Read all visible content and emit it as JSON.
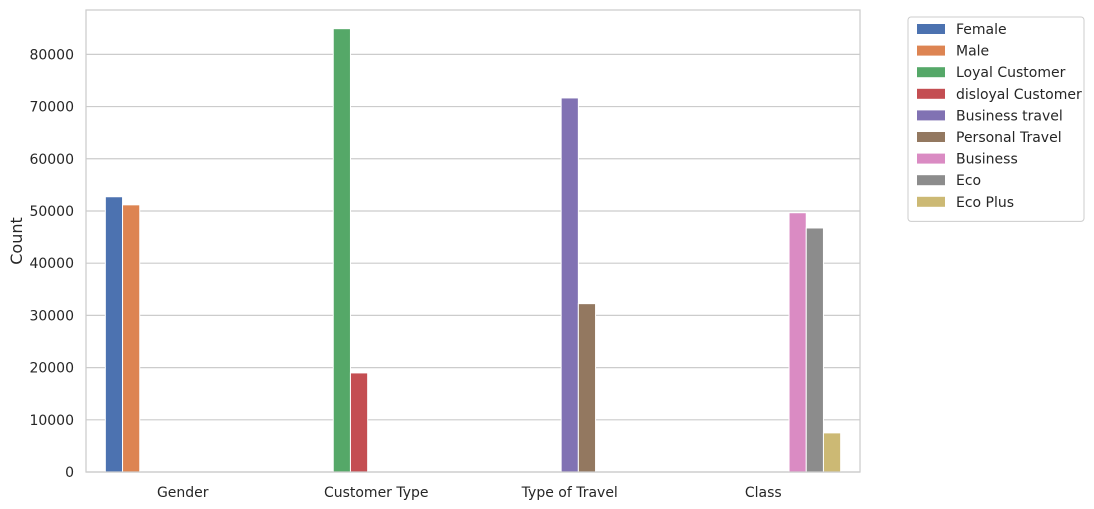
{
  "chart_data": {
    "type": "bar",
    "title": "",
    "xlabel": "",
    "ylabel": "Count",
    "ylim": [
      0,
      88500
    ],
    "yticks": [
      0,
      10000,
      20000,
      30000,
      40000,
      50000,
      60000,
      70000,
      80000
    ],
    "grid": true,
    "legend_position": "outside-right",
    "categories": [
      "Gender",
      "Customer Type",
      "Type of Travel",
      "Class"
    ],
    "series": [
      {
        "name": "Female",
        "color": "#4c72b0",
        "values": [
          52727,
          0,
          0,
          0
        ]
      },
      {
        "name": "Male",
        "color": "#dd8452",
        "values": [
          51177,
          0,
          0,
          0
        ]
      },
      {
        "name": "Loyal Customer",
        "color": "#55a868",
        "values": [
          0,
          84923,
          0,
          0
        ]
      },
      {
        "name": "disloyal Customer",
        "color": "#c44e52",
        "values": [
          0,
          18981,
          0,
          0
        ]
      },
      {
        "name": "Business travel",
        "color": "#8172b3",
        "values": [
          0,
          0,
          71655,
          0
        ]
      },
      {
        "name": "Personal Travel",
        "color": "#937860",
        "values": [
          0,
          0,
          32249,
          0
        ]
      },
      {
        "name": "Business",
        "color": "#da8bc3",
        "values": [
          0,
          0,
          0,
          49665
        ]
      },
      {
        "name": "Eco",
        "color": "#8c8c8c",
        "values": [
          0,
          0,
          0,
          46745
        ]
      },
      {
        "name": "Eco Plus",
        "color": "#ccb974",
        "values": [
          0,
          0,
          0,
          7494
        ]
      }
    ]
  }
}
